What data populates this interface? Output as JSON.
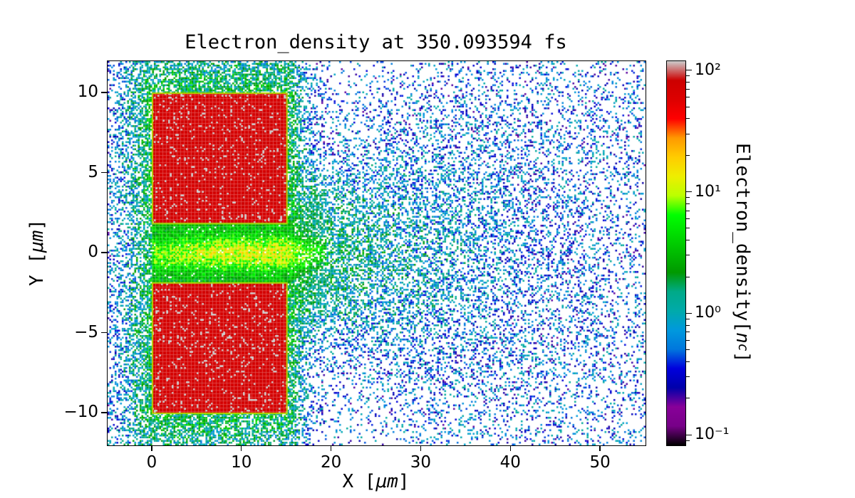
{
  "figure": {
    "background": "#ffffff"
  },
  "chart_data": {
    "type": "heatmap",
    "title": "Electron_density at 350.093594 fs",
    "time_fs": "350.093594",
    "xlabel": {
      "prefix": "X [",
      "math": "μm",
      "suffix": "]"
    },
    "ylabel": {
      "prefix": "Y [",
      "math": "μm",
      "suffix": "]"
    },
    "xlim": [
      -5,
      55
    ],
    "ylim": [
      -12,
      12
    ],
    "xticks": [
      {
        "value": 0,
        "label": "0"
      },
      {
        "value": 10,
        "label": "10"
      },
      {
        "value": 20,
        "label": "20"
      },
      {
        "value": 30,
        "label": "30"
      },
      {
        "value": 40,
        "label": "40"
      },
      {
        "value": 50,
        "label": "50"
      }
    ],
    "yticks": [
      {
        "value": 10,
        "label": "10"
      },
      {
        "value": 5,
        "label": "5"
      },
      {
        "value": 0,
        "label": "0"
      },
      {
        "value": -5,
        "label": "−5"
      },
      {
        "value": -10,
        "label": "−10"
      }
    ],
    "colorbar": {
      "label_prefix": "Electron_density[",
      "label_var": "n",
      "label_sub": "c",
      "label_suffix": "]",
      "scale": "log",
      "log_min": -1.08,
      "log_max": 2.08,
      "ticks": [
        {
          "value": 100,
          "label": "10²"
        },
        {
          "value": 10,
          "label": "10¹"
        },
        {
          "value": 1,
          "label": "10⁰"
        },
        {
          "value": 0.1,
          "label": "10⁻¹"
        }
      ],
      "minor_ticks": true,
      "colormap": "nipy_spectral",
      "colormap_stops": [
        [
          0.0,
          [
            0,
            0,
            0
          ]
        ],
        [
          0.05,
          [
            119,
            0,
            136
          ]
        ],
        [
          0.1,
          [
            136,
            0,
            153
          ]
        ],
        [
          0.15,
          [
            0,
            0,
            170
          ]
        ],
        [
          0.2,
          [
            0,
            0,
            221
          ]
        ],
        [
          0.25,
          [
            0,
            119,
            221
          ]
        ],
        [
          0.3,
          [
            0,
            153,
            221
          ]
        ],
        [
          0.35,
          [
            0,
            170,
            170
          ]
        ],
        [
          0.4,
          [
            0,
            170,
            136
          ]
        ],
        [
          0.45,
          [
            0,
            153,
            0
          ]
        ],
        [
          0.5,
          [
            0,
            187,
            0
          ]
        ],
        [
          0.55,
          [
            0,
            221,
            0
          ]
        ],
        [
          0.6,
          [
            0,
            255,
            0
          ]
        ],
        [
          0.65,
          [
            187,
            255,
            0
          ]
        ],
        [
          0.7,
          [
            238,
            238,
            0
          ]
        ],
        [
          0.75,
          [
            255,
            204,
            0
          ]
        ],
        [
          0.8,
          [
            255,
            153,
            0
          ]
        ],
        [
          0.85,
          [
            255,
            0,
            0
          ]
        ],
        [
          0.9,
          [
            221,
            0,
            0
          ]
        ],
        [
          0.95,
          [
            204,
            0,
            0
          ]
        ],
        [
          1.0,
          [
            204,
            204,
            204
          ]
        ]
      ]
    },
    "features": {
      "target_blocks": [
        {
          "name": "upper-target",
          "x0": 0,
          "x1": 15,
          "y0": 1.85,
          "y1": 10,
          "density_nc": 100
        },
        {
          "name": "lower-target",
          "x0": 0,
          "x1": 15,
          "y0": -10,
          "y1": -1.85,
          "density_nc": 100
        }
      ],
      "block_outline_color": "#b4d800",
      "channel": {
        "x0": 0,
        "x1": 15,
        "half_width": 1.85,
        "base_density_nc": 2.5,
        "peak_density_nc": 9
      },
      "plume": {
        "origin_x": 13,
        "origin_y": 0,
        "peak_density_nc": 1.8,
        "decay_length": 22,
        "sigma0": 1.8,
        "spread_rate": 0.28
      },
      "halo_density_nc": 1.6,
      "background_density_nc": 0.05
    },
    "seed": 1337
  }
}
